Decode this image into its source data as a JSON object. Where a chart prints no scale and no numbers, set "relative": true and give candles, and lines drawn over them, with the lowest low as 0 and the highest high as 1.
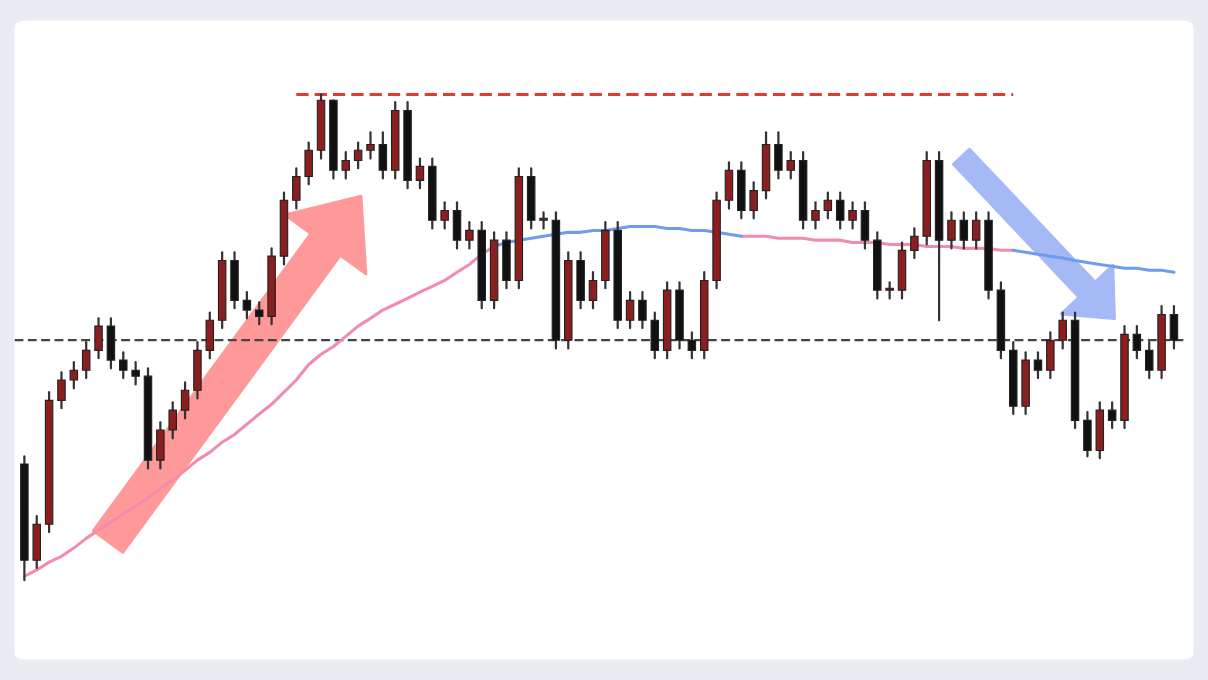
{
  "chart_data": {
    "type": "candlestick",
    "relative": true,
    "categories": [
      null,
      null,
      null,
      null,
      null,
      null,
      null,
      null,
      null,
      null,
      null,
      null,
      null,
      null,
      null,
      null,
      null,
      null,
      null,
      null,
      null,
      null,
      null,
      null,
      null,
      null,
      null,
      null,
      null,
      null,
      null,
      null,
      null,
      null,
      null,
      null,
      null,
      null,
      null,
      null,
      null,
      null,
      null,
      null,
      null,
      null,
      null,
      null,
      null,
      null,
      null,
      null,
      null,
      null,
      null,
      null,
      null,
      null,
      null,
      null,
      null,
      null,
      null,
      null,
      null,
      null,
      null,
      null,
      null,
      null,
      null,
      null,
      null,
      null,
      null,
      null,
      null,
      null,
      null,
      null,
      null,
      null,
      null,
      null,
      null,
      null,
      null,
      null,
      null,
      null,
      null,
      null,
      null,
      null
    ],
    "ohlc": [
      [
        0.239,
        0.255,
        0,
        0.041
      ],
      [
        0.041,
        0.132,
        0.025,
        0.115
      ],
      [
        0.115,
        0.387,
        0.099,
        0.37
      ],
      [
        0.37,
        0.428,
        0.354,
        0.412
      ],
      [
        0.412,
        0.449,
        0.395,
        0.432
      ],
      [
        0.432,
        0.49,
        0.416,
        0.473
      ],
      [
        0.473,
        0.539,
        0.457,
        0.523
      ],
      [
        0.523,
        0.539,
        0.436,
        0.453
      ],
      [
        0.453,
        0.469,
        0.416,
        0.432
      ],
      [
        0.432,
        0.449,
        0.403,
        0.42
      ],
      [
        0.42,
        0.436,
        0.23,
        0.247
      ],
      [
        0.247,
        0.325,
        0.23,
        0.309
      ],
      [
        0.309,
        0.366,
        0.292,
        0.35
      ],
      [
        0.35,
        0.407,
        0.333,
        0.391
      ],
      [
        0.391,
        0.49,
        0.374,
        0.473
      ],
      [
        0.473,
        0.551,
        0.457,
        0.535
      ],
      [
        0.535,
        0.675,
        0.519,
        0.658
      ],
      [
        0.658,
        0.675,
        0.56,
        0.576
      ],
      [
        0.576,
        0.593,
        0.539,
        0.556
      ],
      [
        0.556,
        0.572,
        0.527,
        0.543
      ],
      [
        0.543,
        0.683,
        0.527,
        0.667
      ],
      [
        0.667,
        0.798,
        0.65,
        0.782
      ],
      [
        0.782,
        0.848,
        0.765,
        0.831
      ],
      [
        0.831,
        0.901,
        0.815,
        0.885
      ],
      [
        0.885,
        1,
        0.868,
        0.988
      ],
      [
        0.988,
        0.988,
        0.827,
        0.844
      ],
      [
        0.844,
        0.881,
        0.827,
        0.864
      ],
      [
        0.864,
        0.901,
        0.848,
        0.885
      ],
      [
        0.885,
        0.922,
        0.868,
        0.897
      ],
      [
        0.897,
        0.922,
        0.827,
        0.844
      ],
      [
        0.844,
        0.984,
        0.827,
        0.967
      ],
      [
        0.967,
        0.984,
        0.807,
        0.823
      ],
      [
        0.823,
        0.868,
        0.807,
        0.852
      ],
      [
        0.852,
        0.868,
        0.724,
        0.741
      ],
      [
        0.741,
        0.778,
        0.724,
        0.761
      ],
      [
        0.761,
        0.778,
        0.683,
        0.7
      ],
      [
        0.7,
        0.737,
        0.683,
        0.72
      ],
      [
        0.72,
        0.737,
        0.56,
        0.576
      ],
      [
        0.576,
        0.716,
        0.56,
        0.7
      ],
      [
        0.7,
        0.716,
        0.601,
        0.617
      ],
      [
        0.617,
        0.848,
        0.601,
        0.831
      ],
      [
        0.831,
        0.848,
        0.724,
        0.741
      ],
      [
        0.741,
        0.757,
        0.724,
        0.741
      ],
      [
        0.741,
        0.757,
        0.477,
        0.494
      ],
      [
        0.494,
        0.675,
        0.477,
        0.658
      ],
      [
        0.658,
        0.675,
        0.56,
        0.576
      ],
      [
        0.576,
        0.634,
        0.56,
        0.617
      ],
      [
        0.617,
        0.737,
        0.601,
        0.72
      ],
      [
        0.72,
        0.737,
        0.519,
        0.535
      ],
      [
        0.535,
        0.593,
        0.519,
        0.576
      ],
      [
        0.576,
        0.593,
        0.519,
        0.535
      ],
      [
        0.535,
        0.551,
        0.457,
        0.473
      ],
      [
        0.473,
        0.613,
        0.457,
        0.597
      ],
      [
        0.597,
        0.613,
        0.477,
        0.494
      ],
      [
        0.494,
        0.51,
        0.457,
        0.473
      ],
      [
        0.473,
        0.634,
        0.457,
        0.617
      ],
      [
        0.617,
        0.798,
        0.601,
        0.782
      ],
      [
        0.782,
        0.86,
        0.765,
        0.844
      ],
      [
        0.844,
        0.86,
        0.745,
        0.761
      ],
      [
        0.761,
        0.819,
        0.745,
        0.802
      ],
      [
        0.802,
        0.922,
        0.786,
        0.897
      ],
      [
        0.897,
        0.922,
        0.827,
        0.844
      ],
      [
        0.844,
        0.881,
        0.827,
        0.864
      ],
      [
        0.864,
        0.881,
        0.724,
        0.741
      ],
      [
        0.741,
        0.778,
        0.724,
        0.761
      ],
      [
        0.761,
        0.798,
        0.745,
        0.782
      ],
      [
        0.782,
        0.798,
        0.724,
        0.741
      ],
      [
        0.741,
        0.778,
        0.724,
        0.761
      ],
      [
        0.761,
        0.778,
        0.683,
        0.7
      ],
      [
        0.7,
        0.716,
        0.58,
        0.597
      ],
      [
        0.597,
        0.613,
        0.58,
        0.597
      ],
      [
        0.597,
        0.695,
        0.58,
        0.679
      ],
      [
        0.679,
        0.724,
        0.663,
        0.708
      ],
      [
        0.708,
        0.881,
        0.691,
        0.864
      ],
      [
        0.864,
        0.881,
        0.535,
        0.7
      ],
      [
        0.7,
        0.757,
        0.683,
        0.741
      ],
      [
        0.741,
        0.757,
        0.683,
        0.7
      ],
      [
        0.7,
        0.757,
        0.683,
        0.741
      ],
      [
        0.741,
        0.757,
        0.58,
        0.597
      ],
      [
        0.597,
        0.613,
        0.457,
        0.473
      ],
      [
        0.473,
        0.49,
        0.342,
        0.358
      ],
      [
        0.358,
        0.469,
        0.342,
        0.453
      ],
      [
        0.453,
        0.469,
        0.416,
        0.432
      ],
      [
        0.432,
        0.51,
        0.416,
        0.494
      ],
      [
        0.494,
        0.551,
        0.477,
        0.535
      ],
      [
        0.535,
        0.551,
        0.313,
        0.329
      ],
      [
        0.329,
        0.346,
        0.255,
        0.267
      ],
      [
        0.267,
        0.366,
        0.251,
        0.35
      ],
      [
        0.35,
        0.366,
        0.313,
        0.329
      ],
      [
        0.329,
        0.523,
        0.313,
        0.506
      ],
      [
        0.506,
        0.523,
        0.457,
        0.473
      ],
      [
        0.473,
        0.49,
        0.416,
        0.432
      ],
      [
        0.432,
        0.564,
        0.416,
        0.547
      ],
      [
        0.547,
        0.564,
        0.477,
        0.494
      ]
    ],
    "series": [
      {
        "type": "line",
        "color": "#f28cab",
        "values": [
          0.008,
          0.021,
          0.037,
          0.049,
          0.066,
          0.086,
          0.103,
          0.119,
          0.136,
          0.152,
          0.169,
          0.189,
          0.206,
          0.226,
          0.247,
          0.263,
          0.284,
          0.3,
          0.321,
          0.342,
          0.362,
          0.387,
          0.412,
          0.444,
          0.465,
          0.481,
          0.502,
          0.523,
          0.539,
          0.556,
          0.568,
          0.58,
          0.593,
          0.605,
          0.617,
          0.634,
          0.65,
          0.671,
          0.687,
          null,
          null,
          null,
          null,
          null,
          null,
          null,
          null,
          null,
          null,
          null,
          null,
          null,
          null,
          null,
          null,
          null,
          null,
          null,
          0.708,
          0.708,
          0.708,
          0.704,
          0.704,
          0.704,
          0.7,
          0.7,
          0.7,
          0.695,
          0.695,
          0.695,
          0.691,
          0.691,
          0.691,
          0.687,
          0.687,
          0.687,
          0.683,
          0.683,
          0.683,
          0.679,
          0.679,
          null,
          null,
          null,
          null,
          null,
          null,
          null,
          null,
          null,
          null,
          null,
          null,
          null
        ]
      },
      {
        "type": "line",
        "color": "#6f9cf0",
        "values": [
          null,
          null,
          null,
          null,
          null,
          null,
          null,
          null,
          null,
          null,
          null,
          null,
          null,
          null,
          null,
          null,
          null,
          null,
          null,
          null,
          null,
          null,
          null,
          null,
          null,
          null,
          null,
          null,
          null,
          null,
          null,
          null,
          null,
          null,
          null,
          null,
          null,
          null,
          0.687,
          0.695,
          0.7,
          0.704,
          0.708,
          0.712,
          0.716,
          0.716,
          0.72,
          0.72,
          0.724,
          0.728,
          0.728,
          0.728,
          0.724,
          0.724,
          0.72,
          0.72,
          0.716,
          0.712,
          0.708,
          null,
          null,
          null,
          null,
          null,
          null,
          null,
          null,
          null,
          null,
          null,
          null,
          null,
          null,
          null,
          null,
          null,
          null,
          null,
          null,
          null,
          0.679,
          0.675,
          0.671,
          0.667,
          0.663,
          0.658,
          0.654,
          0.65,
          0.646,
          0.642,
          0.642,
          0.638,
          0.638,
          0.634
        ]
      },
      {
        "type": "line",
        "color": "#e53935",
        "line_style": "dashed",
        "values": [
          null,
          null,
          null,
          null,
          null,
          null,
          null,
          null,
          null,
          null,
          null,
          null,
          null,
          null,
          null,
          null,
          null,
          null,
          null,
          null,
          null,
          null,
          1,
          1,
          1,
          1,
          1,
          1,
          1,
          1,
          1,
          1,
          1,
          1,
          1,
          1,
          1,
          1,
          1,
          1,
          1,
          1,
          1,
          1,
          1,
          1,
          1,
          1,
          1,
          1,
          1,
          1,
          1,
          1,
          1,
          1,
          1,
          1,
          1,
          1,
          1,
          1,
          1,
          1,
          1,
          1,
          1,
          1,
          1,
          1,
          1,
          1,
          1,
          1,
          1,
          1,
          1,
          1,
          1,
          1,
          1,
          null,
          null,
          null,
          null,
          null,
          null,
          null,
          null,
          null,
          null,
          null,
          null,
          null
        ]
      }
    ],
    "ref_lines": [
      {
        "axis": "y",
        "value": 0.494,
        "color": "#444444",
        "line_style": "dashed"
      }
    ]
  }
}
